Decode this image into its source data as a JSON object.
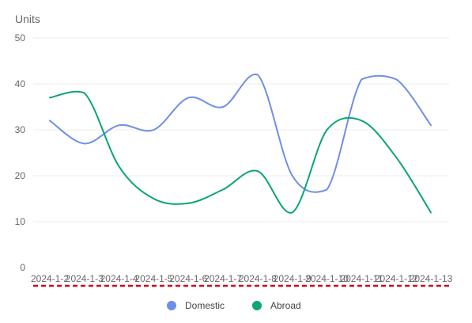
{
  "chart_data": {
    "type": "line",
    "ylabel": "Units",
    "xlabel": "",
    "ylim": [
      0,
      50
    ],
    "yticks": [
      0,
      10,
      20,
      30,
      40,
      50
    ],
    "grid": true,
    "smooth": true,
    "legend_position": "bottom-center",
    "categories": [
      "2024-1-2",
      "2024-1-3",
      "2024-1-4",
      "2024-1-5",
      "2024-1-6",
      "2024-1-7",
      "2024-1-8",
      "2024-1-9",
      "2024-1-10",
      "2024-1-11",
      "2024-1-12",
      "2024-1-13"
    ],
    "series": [
      {
        "name": "Domestic",
        "color": "#6e8fe8",
        "values": [
          32,
          27,
          31,
          30,
          37,
          35,
          42,
          20,
          17,
          41,
          41,
          31
        ]
      },
      {
        "name": "Abroad",
        "color": "#0ca66f",
        "values": [
          37,
          38,
          22,
          15,
          14,
          17,
          21,
          12,
          30,
          32,
          24,
          12
        ]
      }
    ],
    "axis_line_color": "#d0021b",
    "grid_color": "#ececec",
    "axis_label_color": "#666666"
  }
}
